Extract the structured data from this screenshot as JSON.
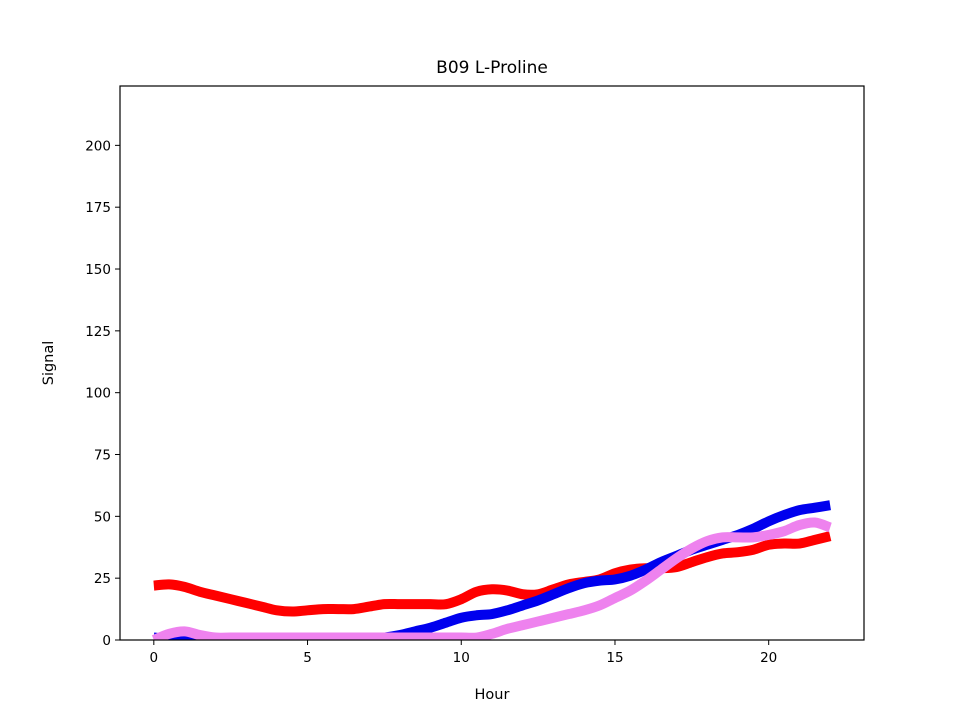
{
  "chart_data": {
    "type": "line",
    "title": "B09 L-Proline",
    "xlabel": "Hour",
    "ylabel": "Signal",
    "xlim": [
      -1.1,
      23.1
    ],
    "ylim": [
      0,
      224
    ],
    "xticks": [
      0,
      5,
      10,
      15,
      20
    ],
    "yticks": [
      0,
      25,
      50,
      75,
      100,
      125,
      150,
      175,
      200
    ],
    "grid": false,
    "series": [
      {
        "color": "#ff0000",
        "x": [
          0,
          0.5,
          1,
          1.5,
          2,
          2.5,
          3,
          3.5,
          4,
          4.5,
          5,
          5.5,
          6,
          6.5,
          7,
          7.5,
          8,
          8.5,
          9,
          9.5,
          10,
          10.5,
          11,
          11.5,
          12,
          12.5,
          13,
          13.5,
          14,
          14.5,
          15,
          15.5,
          16,
          16.5,
          17,
          17.5,
          18,
          18.5,
          19,
          19.5,
          20,
          20.5,
          21,
          21.5,
          22
        ],
        "y": [
          22,
          22.5,
          21.5,
          19.5,
          18,
          16.5,
          15,
          13.5,
          12,
          11.5,
          12,
          12.5,
          12.5,
          12.5,
          13.5,
          14.5,
          14.5,
          14.5,
          14.5,
          14.5,
          16.5,
          19.5,
          20.5,
          20,
          18.5,
          18.5,
          20.5,
          22.5,
          23.5,
          24.5,
          27,
          28.5,
          29,
          29,
          29.5,
          31.5,
          33.5,
          35,
          35.5,
          36.5,
          38.5,
          39,
          39,
          40.5,
          42
        ]
      },
      {
        "color": "#0000ee",
        "x": [
          0,
          0.5,
          1,
          1.5,
          2,
          2.5,
          3,
          3.5,
          4,
          4.5,
          5,
          5.5,
          6,
          6.5,
          7,
          7.5,
          8,
          8.5,
          9,
          9.5,
          10,
          10.5,
          11,
          11.5,
          12,
          12.5,
          13,
          13.5,
          14,
          14.5,
          15,
          15.5,
          16,
          16.5,
          17,
          17.5,
          18,
          18.5,
          19,
          19.5,
          20,
          20.5,
          21,
          21.5,
          22
        ],
        "y": [
          1,
          0.5,
          1.5,
          0.5,
          0.5,
          0.5,
          0.5,
          0.5,
          0.5,
          0.5,
          0.5,
          0.5,
          0.5,
          0.5,
          0.5,
          1,
          2,
          3.5,
          5,
          7,
          9,
          10,
          10.5,
          12,
          14,
          16,
          18.5,
          21,
          23,
          24,
          24.5,
          26,
          28.5,
          31.5,
          34,
          36.5,
          38.5,
          40.5,
          42.5,
          45,
          48,
          50.5,
          52.5,
          53.5,
          54.5
        ]
      },
      {
        "color": "#ee82ee",
        "x": [
          0,
          0.5,
          1,
          1.5,
          2,
          2.5,
          3,
          3.5,
          4,
          4.5,
          5,
          5.5,
          6,
          6.5,
          7,
          7.5,
          8,
          8.5,
          9,
          9.5,
          10,
          10.5,
          11,
          11.5,
          12,
          12.5,
          13,
          13.5,
          14,
          14.5,
          15,
          15.5,
          16,
          16.5,
          17,
          17.5,
          18,
          18.5,
          19,
          19.5,
          20,
          20.5,
          21,
          21.5,
          22
        ],
        "y": [
          0,
          2.5,
          3.5,
          2,
          1,
          1,
          1,
          1,
          1,
          1,
          1,
          1,
          1,
          1,
          1,
          1,
          1,
          1,
          1,
          1,
          1,
          1,
          2.5,
          4.5,
          6,
          7.5,
          9,
          10.5,
          12,
          14,
          17,
          20,
          24,
          28.5,
          33,
          37,
          40,
          41.5,
          41.5,
          41.5,
          42.5,
          44,
          46.5,
          47.5,
          45.5
        ]
      }
    ]
  }
}
